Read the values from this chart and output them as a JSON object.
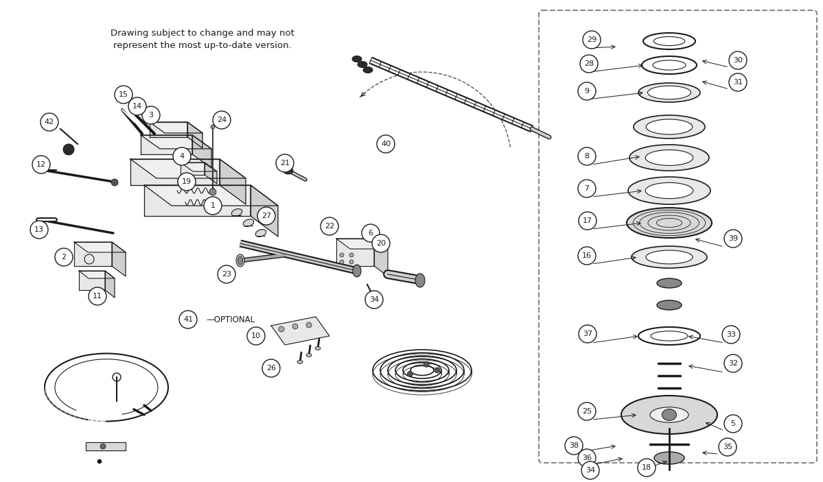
{
  "background_color": "#ffffff",
  "line_color": "#1a1a1a",
  "text_color": "#1a1a1a",
  "disclaimer_line1": "Drawing subject to change and may not",
  "disclaimer_line2": "represent the most up-to-date version.",
  "fig_width": 11.99,
  "fig_height": 7.03,
  "dpi": 100
}
